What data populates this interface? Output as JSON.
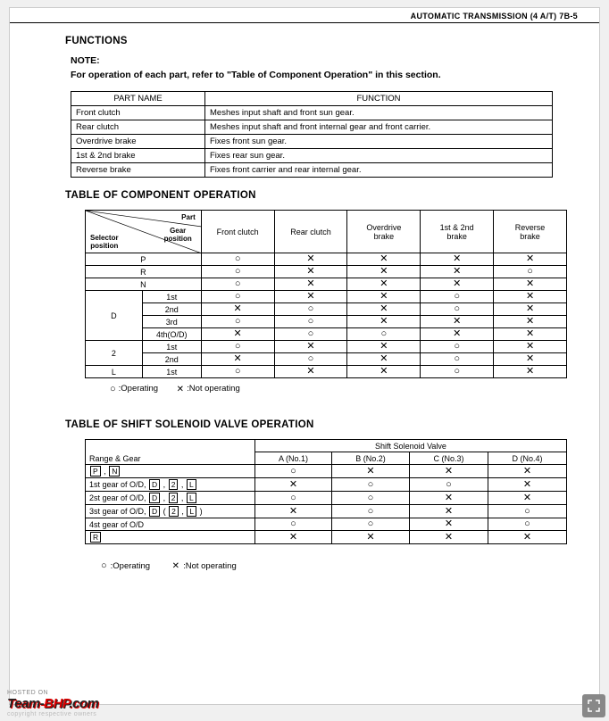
{
  "header": "AUTOMATIC TRANSMISSION (4 A/T) 7B-5",
  "section_functions": "FUNCTIONS",
  "note_label": "NOTE:",
  "note_text": "For operation of each part, refer to \"Table of Component Operation\" in this section.",
  "func_table": {
    "headers": [
      "PART NAME",
      "FUNCTION"
    ],
    "rows": [
      [
        "Front clutch",
        "Meshes input shaft and front sun gear."
      ],
      [
        "Rear clutch",
        "Meshes input shaft and front internal gear and front carrier."
      ],
      [
        "Overdrive brake",
        "Fixes front sun gear."
      ],
      [
        "1st & 2nd brake",
        "Fixes rear sun gear."
      ],
      [
        "Reverse brake",
        "Fixes front carrier and rear internal gear."
      ]
    ]
  },
  "section_comp": "TABLE OF COMPONENT OPERATION",
  "comp_table": {
    "diag_labels": {
      "part": "Part",
      "selector": "Selector\nposition",
      "gear": "Gear\nposition"
    },
    "col_headers": [
      "Front clutch",
      "Rear clutch",
      "Overdrive\nbrake",
      "1st & 2nd\nbrake",
      "Reverse\nbrake"
    ],
    "rows": [
      {
        "sp": "P",
        "gp": "",
        "span": 1,
        "cells": [
          "○",
          "✕",
          "✕",
          "✕",
          "✕"
        ]
      },
      {
        "sp": "R",
        "gp": "",
        "span": 1,
        "cells": [
          "○",
          "✕",
          "✕",
          "✕",
          "○"
        ]
      },
      {
        "sp": "N",
        "gp": "",
        "span": 1,
        "cells": [
          "○",
          "✕",
          "✕",
          "✕",
          "✕"
        ]
      },
      {
        "sp": "D",
        "gp": "1st",
        "span": 4,
        "cells": [
          "○",
          "✕",
          "✕",
          "○",
          "✕"
        ]
      },
      {
        "sp": "",
        "gp": "2nd",
        "span": 0,
        "cells": [
          "✕",
          "○",
          "✕",
          "○",
          "✕"
        ]
      },
      {
        "sp": "",
        "gp": "3rd",
        "span": 0,
        "cells": [
          "○",
          "○",
          "✕",
          "✕",
          "✕"
        ]
      },
      {
        "sp": "",
        "gp": "4th(O/D)",
        "span": 0,
        "cells": [
          "✕",
          "○",
          "○",
          "✕",
          "✕"
        ]
      },
      {
        "sp": "2",
        "gp": "1st",
        "span": 2,
        "cells": [
          "○",
          "✕",
          "✕",
          "○",
          "✕"
        ]
      },
      {
        "sp": "",
        "gp": "2nd",
        "span": 0,
        "cells": [
          "✕",
          "○",
          "✕",
          "○",
          "✕"
        ]
      },
      {
        "sp": "L",
        "gp": "1st",
        "span": 1,
        "cells": [
          "○",
          "✕",
          "✕",
          "○",
          "✕"
        ]
      }
    ]
  },
  "legend": {
    "operating": ":Operating",
    "not_operating": ":Not operating"
  },
  "section_sol": "TABLE OF SHIFT SOLENOID VALVE OPERATION",
  "sol_table": {
    "group_header": "Shift Solenoid Valve",
    "range_header": "Range & Gear",
    "col_headers": [
      "A (No.1)",
      "B (No.2)",
      "C (No.3)",
      "D (No.4)"
    ],
    "rows": [
      {
        "label_parts": [
          {
            "t": "box",
            "v": "P"
          },
          {
            "t": "text",
            "v": " , "
          },
          {
            "t": "box",
            "v": "N"
          }
        ],
        "cells": [
          "○",
          "✕",
          "✕",
          "✕"
        ]
      },
      {
        "label_parts": [
          {
            "t": "text",
            "v": "1st gear of O/D, "
          },
          {
            "t": "box",
            "v": "D"
          },
          {
            "t": "text",
            "v": " , "
          },
          {
            "t": "box",
            "v": "2"
          },
          {
            "t": "text",
            "v": " , "
          },
          {
            "t": "box",
            "v": "L"
          }
        ],
        "cells": [
          "✕",
          "○",
          "○",
          "✕"
        ]
      },
      {
        "label_parts": [
          {
            "t": "text",
            "v": "2st gear of O/D, "
          },
          {
            "t": "box",
            "v": "D"
          },
          {
            "t": "text",
            "v": " , "
          },
          {
            "t": "box",
            "v": "2"
          },
          {
            "t": "text",
            "v": " , "
          },
          {
            "t": "box",
            "v": "L"
          }
        ],
        "cells": [
          "○",
          "○",
          "✕",
          "✕"
        ]
      },
      {
        "label_parts": [
          {
            "t": "text",
            "v": "3st gear of O/D, "
          },
          {
            "t": "box",
            "v": "D"
          },
          {
            "t": "text",
            "v": " ( "
          },
          {
            "t": "box",
            "v": "2"
          },
          {
            "t": "text",
            "v": " , "
          },
          {
            "t": "box",
            "v": "L"
          },
          {
            "t": "text",
            "v": " )"
          }
        ],
        "cells": [
          "✕",
          "○",
          "✕",
          "○"
        ]
      },
      {
        "label_parts": [
          {
            "t": "text",
            "v": "4st gear of O/D"
          }
        ],
        "cells": [
          "○",
          "○",
          "✕",
          "○"
        ]
      },
      {
        "label_parts": [
          {
            "t": "box",
            "v": "R"
          }
        ],
        "cells": [
          "✕",
          "✕",
          "✕",
          "✕"
        ]
      }
    ]
  },
  "footer": {
    "hosted": "HOSTED ON",
    "logo1": "Team-",
    "logo2": "BHP",
    "logo3": ".com",
    "copy": "copyright respective owners"
  },
  "symbols": {
    "circle": "○",
    "cross": "✕"
  }
}
